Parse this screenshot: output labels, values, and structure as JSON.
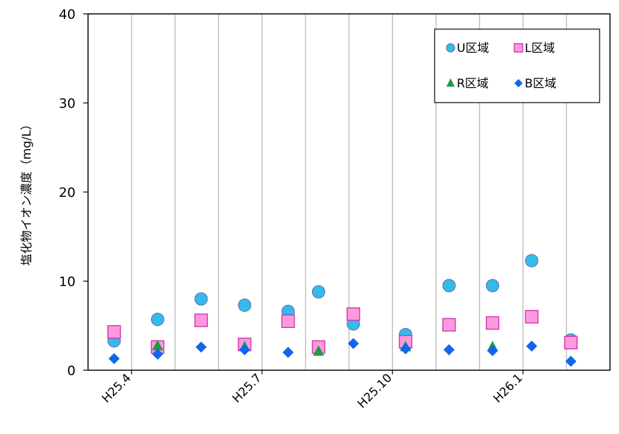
{
  "chart_data": {
    "type": "scatter",
    "title": "",
    "xlabel": "",
    "ylabel": "塩化物イオン濃度（mg/L）",
    "ylim": [
      0,
      40
    ],
    "yticks": [
      "0",
      "10",
      "20",
      "30",
      "40"
    ],
    "x_tick_labels": [
      {
        "label": "H25.4",
        "at": 1
      },
      {
        "label": "H25.7",
        "at": 4
      },
      {
        "label": "H25.10",
        "at": 7
      },
      {
        "label": "H26.1",
        "at": 10
      }
    ],
    "x_slots": 12,
    "grid": "vertical",
    "legend_position": "top-right",
    "series": [
      {
        "name": "U区域",
        "marker": "circle",
        "color": "#33bbee",
        "points": [
          [
            0.6,
            3.3
          ],
          [
            1.6,
            5.7
          ],
          [
            2.6,
            8.0
          ],
          [
            3.6,
            7.3
          ],
          [
            4.6,
            6.6
          ],
          [
            5.3,
            8.8
          ],
          [
            6.1,
            5.2
          ],
          [
            7.3,
            4.0
          ],
          [
            8.3,
            9.5
          ],
          [
            9.3,
            9.5
          ],
          [
            10.2,
            12.3
          ],
          [
            11.1,
            3.4
          ]
        ]
      },
      {
        "name": "L区域",
        "marker": "square",
        "color": "#ff99dd",
        "points": [
          [
            0.6,
            4.3
          ],
          [
            1.6,
            2.6
          ],
          [
            2.6,
            5.6
          ],
          [
            3.6,
            2.9
          ],
          [
            4.6,
            5.5
          ],
          [
            5.3,
            2.6
          ],
          [
            6.1,
            6.3
          ],
          [
            7.3,
            3.2
          ],
          [
            8.3,
            5.1
          ],
          [
            9.3,
            5.3
          ],
          [
            10.2,
            6.0
          ],
          [
            11.1,
            3.1
          ]
        ]
      },
      {
        "name": "R区域",
        "marker": "triangle",
        "color": "#229944",
        "points": [
          [
            1.6,
            2.7
          ],
          [
            3.6,
            2.6
          ],
          [
            5.3,
            2.1
          ],
          [
            7.3,
            2.6
          ],
          [
            9.3,
            2.6
          ]
        ]
      },
      {
        "name": "B区域",
        "marker": "diamond",
        "color": "#1166ee",
        "points": [
          [
            0.6,
            1.3
          ],
          [
            1.6,
            1.8
          ],
          [
            2.6,
            2.6
          ],
          [
            3.6,
            2.3
          ],
          [
            4.6,
            2.0
          ],
          [
            6.1,
            3.0
          ],
          [
            7.3,
            2.4
          ],
          [
            8.3,
            2.3
          ],
          [
            9.3,
            2.2
          ],
          [
            10.2,
            2.7
          ],
          [
            11.1,
            1.0
          ]
        ]
      }
    ]
  }
}
